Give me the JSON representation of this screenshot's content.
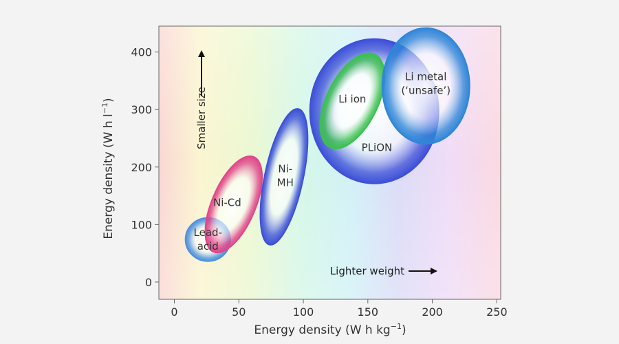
{
  "chart_data": {
    "type": "scatter",
    "title": "",
    "xlabel": "Energy density (W h kg",
    "xlabel_sup": "−1",
    "xlabel_end": ")",
    "ylabel": "Energy density (W h l",
    "ylabel_sup": "−1",
    "ylabel_end": ")",
    "xlim": [
      -12,
      253
    ],
    "ylim": [
      -30,
      445
    ],
    "grid": false,
    "xticks": [
      0,
      50,
      100,
      150,
      200,
      250
    ],
    "yticks": [
      0,
      100,
      200,
      300,
      400
    ],
    "regions": [
      {
        "label": [
          "Lead-",
          "acid"
        ],
        "cx": 26,
        "cy": 74,
        "rx": 17.5,
        "ry": 38,
        "angle": 0,
        "color": "#4a90e0"
      },
      {
        "label": [
          "Ni-Cd"
        ],
        "cx": 46,
        "cy": 135,
        "rx": 17,
        "ry": 90,
        "angle": 23,
        "color": "#e0458a"
      },
      {
        "label": [
          "Ni-",
          "MH"
        ],
        "cx": 85,
        "cy": 183,
        "rx": 15,
        "ry": 121,
        "angle": 12,
        "color": "#3c4fd8"
      },
      {
        "label": [
          "PLiON"
        ],
        "cx": 155,
        "cy": 297,
        "rx": 50,
        "ry": 126,
        "angle": 0,
        "color": "#3c4fd8"
      },
      {
        "label": [
          "Li ion"
        ],
        "cx": 138,
        "cy": 315,
        "rx": 20,
        "ry": 90,
        "angle": 26,
        "color": "#3cc050"
      },
      {
        "label": [
          "Li metal",
          "(‘unsafe’)"
        ],
        "cx": 195,
        "cy": 341,
        "rx": 34,
        "ry": 101,
        "angle": 0,
        "color": "#2f86d8"
      }
    ],
    "annotations": {
      "smaller_size": "Smaller size",
      "lighter_weight": "Lighter weight"
    }
  }
}
